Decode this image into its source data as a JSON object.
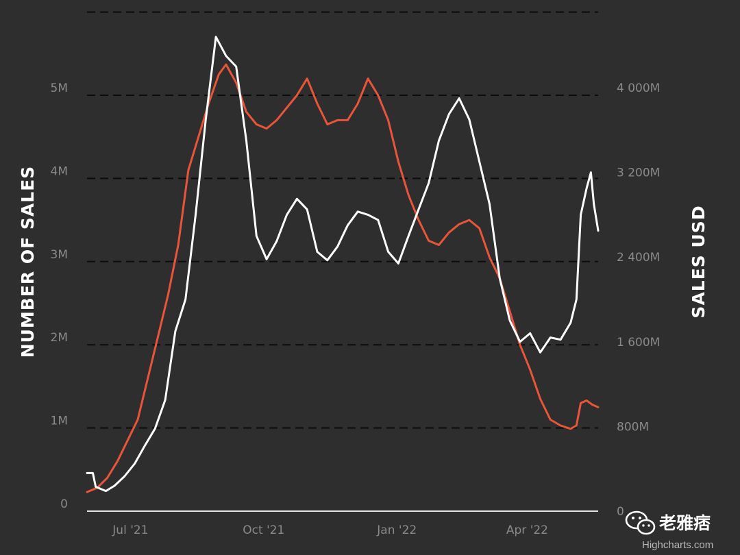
{
  "chart_data": {
    "type": "line",
    "title": "",
    "left_axis": {
      "label": "NUMBER OF SALES",
      "range": [
        0,
        5000000
      ],
      "ticks": [
        {
          "value": 0,
          "label": "0"
        },
        {
          "value": 1000000,
          "label": "1M"
        },
        {
          "value": 2000000,
          "label": "2M"
        },
        {
          "value": 3000000,
          "label": "3M"
        },
        {
          "value": 4000000,
          "label": "4M"
        },
        {
          "value": 5000000,
          "label": "5M"
        }
      ]
    },
    "right_axis": {
      "label": "SALES USD",
      "range": [
        0,
        4000000000
      ],
      "ticks": [
        {
          "value": 0,
          "label": "0"
        },
        {
          "value": 800000000,
          "label": "800M"
        },
        {
          "value": 1600000000,
          "label": "1 600M"
        },
        {
          "value": 2400000000,
          "label": "2 400M"
        },
        {
          "value": 3200000000,
          "label": "3 200M"
        },
        {
          "value": 4000000000,
          "label": "4 000M"
        }
      ]
    },
    "x_axis": {
      "ticks": [
        {
          "value": "2021-07-01",
          "label": "Jul '21"
        },
        {
          "value": "2021-10-01",
          "label": "Oct '21"
        },
        {
          "value": "2022-01-01",
          "label": "Jan '22"
        },
        {
          "value": "2022-04-01",
          "label": "Apr '22"
        }
      ],
      "range": [
        "2021-06-01",
        "2022-05-20"
      ]
    },
    "grid": true,
    "series": [
      {
        "axis": "left",
        "color": "#e8553a",
        "points": [
          [
            "2021-06-01",
            230000
          ],
          [
            "2021-06-08",
            280000
          ],
          [
            "2021-06-15",
            400000
          ],
          [
            "2021-06-22",
            600000
          ],
          [
            "2021-06-29",
            850000
          ],
          [
            "2021-07-06",
            1100000
          ],
          [
            "2021-07-13",
            1600000
          ],
          [
            "2021-07-20",
            2100000
          ],
          [
            "2021-07-27",
            2600000
          ],
          [
            "2021-08-03",
            3200000
          ],
          [
            "2021-08-10",
            4100000
          ],
          [
            "2021-08-17",
            4500000
          ],
          [
            "2021-08-24",
            4900000
          ],
          [
            "2021-08-31",
            5250000
          ],
          [
            "2021-09-05",
            5370000
          ],
          [
            "2021-09-12",
            5150000
          ],
          [
            "2021-09-19",
            4800000
          ],
          [
            "2021-09-26",
            4650000
          ],
          [
            "2021-10-03",
            4600000
          ],
          [
            "2021-10-10",
            4700000
          ],
          [
            "2021-10-17",
            4850000
          ],
          [
            "2021-10-24",
            5000000
          ],
          [
            "2021-10-31",
            5200000
          ],
          [
            "2021-11-07",
            4900000
          ],
          [
            "2021-11-14",
            4650000
          ],
          [
            "2021-11-21",
            4700000
          ],
          [
            "2021-11-28",
            4700000
          ],
          [
            "2021-12-05",
            4900000
          ],
          [
            "2021-12-12",
            5200000
          ],
          [
            "2021-12-19",
            5000000
          ],
          [
            "2021-12-26",
            4700000
          ],
          [
            "2022-01-02",
            4200000
          ],
          [
            "2022-01-09",
            3800000
          ],
          [
            "2022-01-16",
            3500000
          ],
          [
            "2022-01-23",
            3250000
          ],
          [
            "2022-01-30",
            3200000
          ],
          [
            "2022-02-06",
            3350000
          ],
          [
            "2022-02-13",
            3450000
          ],
          [
            "2022-02-20",
            3500000
          ],
          [
            "2022-02-27",
            3400000
          ],
          [
            "2022-03-06",
            3050000
          ],
          [
            "2022-03-13",
            2800000
          ],
          [
            "2022-03-20",
            2400000
          ],
          [
            "2022-03-27",
            2000000
          ],
          [
            "2022-04-03",
            1700000
          ],
          [
            "2022-04-10",
            1350000
          ],
          [
            "2022-04-17",
            1100000
          ],
          [
            "2022-04-24",
            1030000
          ],
          [
            "2022-05-01",
            990000
          ],
          [
            "2022-05-05",
            1030000
          ],
          [
            "2022-05-08",
            1300000
          ],
          [
            "2022-05-12",
            1330000
          ],
          [
            "2022-05-16",
            1280000
          ],
          [
            "2022-05-20",
            1250000
          ]
        ]
      },
      {
        "axis": "right",
        "color": "#ffffff",
        "points": [
          [
            "2021-06-01",
            360000000
          ],
          [
            "2021-06-05",
            360000000
          ],
          [
            "2021-06-07",
            230000000
          ],
          [
            "2021-06-14",
            190000000
          ],
          [
            "2021-06-20",
            240000000
          ],
          [
            "2021-06-27",
            330000000
          ],
          [
            "2021-07-04",
            450000000
          ],
          [
            "2021-07-11",
            620000000
          ],
          [
            "2021-07-18",
            780000000
          ],
          [
            "2021-07-25",
            1050000000
          ],
          [
            "2021-08-01",
            1700000000
          ],
          [
            "2021-08-08",
            2000000000
          ],
          [
            "2021-08-15",
            2800000000
          ],
          [
            "2021-08-22",
            3700000000
          ],
          [
            "2021-08-29",
            4480000000
          ],
          [
            "2021-09-05",
            4300000000
          ],
          [
            "2021-09-12",
            4200000000
          ],
          [
            "2021-09-19",
            3500000000
          ],
          [
            "2021-09-26",
            2600000000
          ],
          [
            "2021-10-03",
            2380000000
          ],
          [
            "2021-10-10",
            2550000000
          ],
          [
            "2021-10-17",
            2800000000
          ],
          [
            "2021-10-24",
            2950000000
          ],
          [
            "2021-10-31",
            2850000000
          ],
          [
            "2021-11-07",
            2450000000
          ],
          [
            "2021-11-14",
            2370000000
          ],
          [
            "2021-11-21",
            2500000000
          ],
          [
            "2021-11-28",
            2700000000
          ],
          [
            "2021-12-05",
            2830000000
          ],
          [
            "2021-12-12",
            2800000000
          ],
          [
            "2021-12-19",
            2750000000
          ],
          [
            "2021-12-26",
            2450000000
          ],
          [
            "2022-01-02",
            2340000000
          ],
          [
            "2022-01-09",
            2600000000
          ],
          [
            "2022-01-16",
            2850000000
          ],
          [
            "2022-01-23",
            3100000000
          ],
          [
            "2022-01-30",
            3500000000
          ],
          [
            "2022-02-06",
            3750000000
          ],
          [
            "2022-02-13",
            3900000000
          ],
          [
            "2022-02-20",
            3700000000
          ],
          [
            "2022-02-27",
            3300000000
          ],
          [
            "2022-03-06",
            2900000000
          ],
          [
            "2022-03-13",
            2200000000
          ],
          [
            "2022-03-20",
            1800000000
          ],
          [
            "2022-03-27",
            1600000000
          ],
          [
            "2022-04-03",
            1680000000
          ],
          [
            "2022-04-10",
            1500000000
          ],
          [
            "2022-04-17",
            1640000000
          ],
          [
            "2022-04-24",
            1620000000
          ],
          [
            "2022-05-01",
            1780000000
          ],
          [
            "2022-05-05",
            2000000000
          ],
          [
            "2022-05-08",
            2800000000
          ],
          [
            "2022-05-12",
            3050000000
          ],
          [
            "2022-05-15",
            3200000000
          ],
          [
            "2022-05-17",
            2900000000
          ],
          [
            "2022-05-20",
            2650000000
          ]
        ]
      }
    ]
  },
  "watermark": {
    "name": "老雅痞",
    "site": "Highcharts.com",
    "icon": "wechat-icon"
  }
}
